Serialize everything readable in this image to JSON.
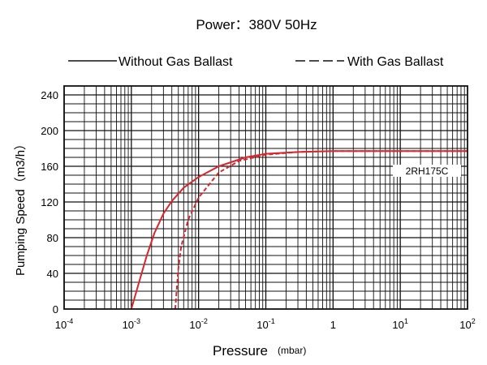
{
  "chart_data": {
    "type": "line",
    "title": "Power：380V 50Hz",
    "xlabel": "Pressure",
    "xlabel_unit": "(mbar)",
    "ylabel": "Pumping Speed（m3/h）",
    "xscale": "log",
    "xlim": [
      0.0001,
      100
    ],
    "ylim": [
      0,
      250
    ],
    "grid": true,
    "legend_position": "top",
    "x_ticks": [
      {
        "value": 0.0001,
        "base": "10",
        "exp": "-4"
      },
      {
        "value": 0.001,
        "base": "10",
        "exp": "-3"
      },
      {
        "value": 0.01,
        "base": "10",
        "exp": "-2"
      },
      {
        "value": 0.1,
        "base": "10",
        "exp": "-1"
      },
      {
        "value": 1,
        "base": "1",
        "exp": ""
      },
      {
        "value": 10,
        "base": "10",
        "exp": "1"
      },
      {
        "value": 100,
        "base": "10",
        "exp": "2"
      }
    ],
    "y_ticks": [
      "0",
      "40",
      "80",
      "120",
      "160",
      "200",
      "240"
    ],
    "series": [
      {
        "name": "Without Gas Ballast",
        "style": "solid",
        "color": "#d7262e",
        "points": [
          [
            0.001,
            0
          ],
          [
            0.0013,
            30
          ],
          [
            0.0017,
            60
          ],
          [
            0.0022,
            85
          ],
          [
            0.003,
            107
          ],
          [
            0.004,
            121
          ],
          [
            0.006,
            136
          ],
          [
            0.01,
            148
          ],
          [
            0.02,
            160
          ],
          [
            0.05,
            170
          ],
          [
            0.1,
            174
          ],
          [
            0.3,
            176
          ],
          [
            1,
            177
          ],
          [
            100,
            177
          ]
        ]
      },
      {
        "name": "With Gas Ballast",
        "style": "dashed",
        "color": "#d7262e",
        "points": [
          [
            0.0045,
            0
          ],
          [
            0.005,
            45
          ],
          [
            0.0055,
            70
          ],
          [
            0.007,
            100
          ],
          [
            0.01,
            125
          ],
          [
            0.02,
            153
          ],
          [
            0.04,
            166
          ],
          [
            0.1,
            173
          ],
          [
            0.3,
            176
          ],
          [
            1,
            177
          ],
          [
            100,
            177
          ]
        ]
      }
    ],
    "annotations": [
      {
        "text": "2RH175C",
        "x": 30,
        "y": 167
      }
    ]
  }
}
